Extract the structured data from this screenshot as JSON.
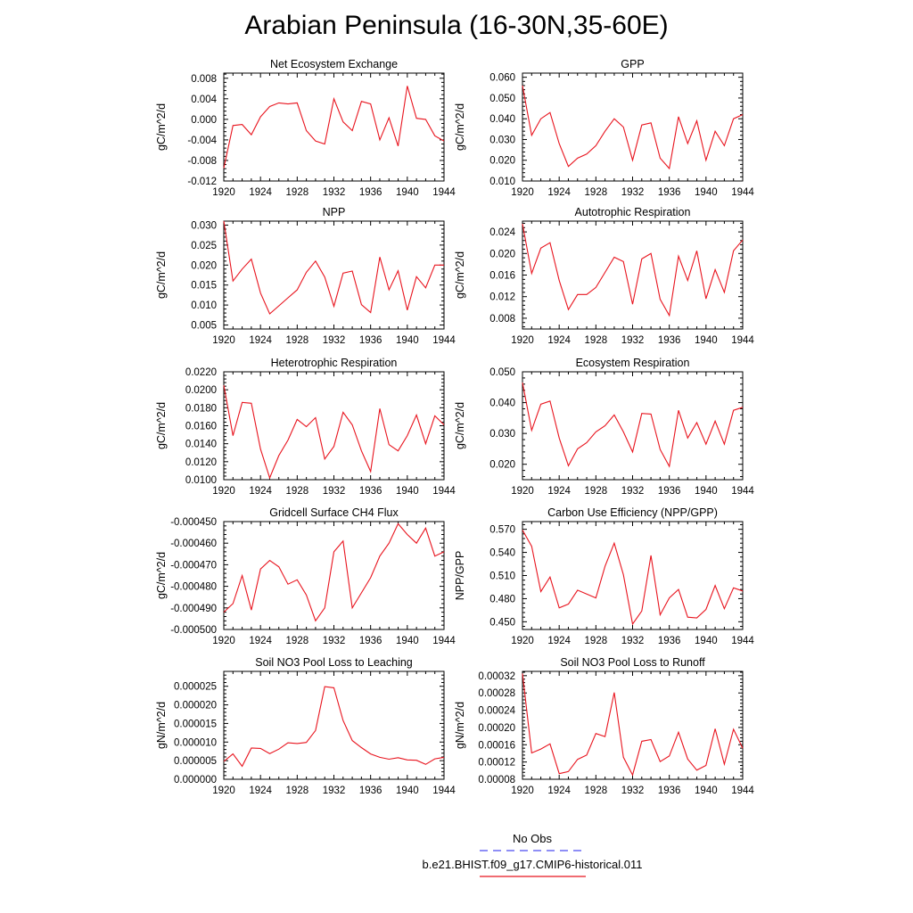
{
  "title": "Arabian Peninsula (16-30N,35-60E)",
  "legend": {
    "items": [
      {
        "label": "No Obs",
        "color": "#4a4af0",
        "dash": true
      },
      {
        "label": "b.e21.BHIST.f09_g17.CMIP6-historical.011",
        "color": "#e8141e",
        "dash": false
      }
    ]
  },
  "colors": {
    "series": "#e8141e"
  },
  "chart_data": [
    {
      "type": "line",
      "title": "Net Ecosystem Exchange",
      "ylabel": "gC/m^2/d",
      "xlim": [
        1920,
        1944
      ],
      "xticks": [
        "1920",
        "1924",
        "1928",
        "1932",
        "1936",
        "1940",
        "1944"
      ],
      "ylim": [
        -0.012,
        0.009
      ],
      "yticks": [
        "-0.012",
        "-0.008",
        "-0.004",
        "0.000",
        "0.004",
        "0.008"
      ],
      "x": [
        1920,
        1921,
        1922,
        1923,
        1924,
        1925,
        1926,
        1927,
        1928,
        1929,
        1930,
        1931,
        1932,
        1933,
        1934,
        1935,
        1936,
        1937,
        1938,
        1939,
        1940,
        1941,
        1942,
        1943,
        1944
      ],
      "y": [
        -0.0095,
        -0.0012,
        -0.001,
        -0.003,
        0.0005,
        0.0025,
        0.0032,
        0.003,
        0.0032,
        -0.0022,
        -0.0042,
        -0.0048,
        0.004,
        -0.0005,
        -0.0022,
        0.0035,
        0.003,
        -0.004,
        0.0003,
        -0.0052,
        0.0065,
        0.0002,
        0.0,
        -0.0032,
        -0.0042
      ]
    },
    {
      "type": "line",
      "title": "GPP",
      "ylabel": "gC/m^2/d",
      "xlim": [
        1920,
        1944
      ],
      "xticks": [
        "1920",
        "1924",
        "1928",
        "1932",
        "1936",
        "1940",
        "1944"
      ],
      "ylim": [
        0.01,
        0.062
      ],
      "yticks": [
        "0.010",
        "0.020",
        "0.030",
        "0.040",
        "0.050",
        "0.060"
      ],
      "x": [
        1920,
        1921,
        1922,
        1923,
        1924,
        1925,
        1926,
        1927,
        1928,
        1929,
        1930,
        1931,
        1932,
        1933,
        1934,
        1935,
        1936,
        1937,
        1938,
        1939,
        1940,
        1941,
        1942,
        1943,
        1944
      ],
      "y": [
        0.056,
        0.032,
        0.04,
        0.043,
        0.028,
        0.017,
        0.021,
        0.023,
        0.027,
        0.034,
        0.04,
        0.036,
        0.02,
        0.037,
        0.038,
        0.021,
        0.016,
        0.041,
        0.028,
        0.039,
        0.02,
        0.034,
        0.027,
        0.04,
        0.042
      ]
    },
    {
      "type": "line",
      "title": "NPP",
      "ylabel": "gC/m^2/d",
      "xlim": [
        1920,
        1944
      ],
      "xticks": [
        "1920",
        "1924",
        "1928",
        "1932",
        "1936",
        "1940",
        "1944"
      ],
      "ylim": [
        0.004,
        0.031
      ],
      "yticks": [
        "0.005",
        "0.010",
        "0.015",
        "0.020",
        "0.025",
        "0.030"
      ],
      "x": [
        1920,
        1921,
        1922,
        1923,
        1924,
        1925,
        1926,
        1927,
        1928,
        1929,
        1930,
        1931,
        1932,
        1933,
        1934,
        1935,
        1936,
        1937,
        1938,
        1939,
        1940,
        1941,
        1942,
        1943,
        1944
      ],
      "y": [
        0.031,
        0.016,
        0.019,
        0.0215,
        0.013,
        0.0078,
        0.0098,
        0.0118,
        0.0138,
        0.0182,
        0.021,
        0.017,
        0.0097,
        0.018,
        0.0185,
        0.0101,
        0.0081,
        0.022,
        0.0138,
        0.0186,
        0.0087,
        0.0171,
        0.0143,
        0.02,
        0.02
      ]
    },
    {
      "type": "line",
      "title": "Autotrophic Respiration",
      "ylabel": "gC/m^2/d",
      "xlim": [
        1920,
        1944
      ],
      "xticks": [
        "1920",
        "1924",
        "1928",
        "1932",
        "1936",
        "1940",
        "1944"
      ],
      "ylim": [
        0.006,
        0.026
      ],
      "yticks": [
        "0.008",
        "0.012",
        "0.016",
        "0.020",
        "0.024"
      ],
      "x": [
        1920,
        1921,
        1922,
        1923,
        1924,
        1925,
        1926,
        1927,
        1928,
        1929,
        1930,
        1931,
        1932,
        1933,
        1934,
        1935,
        1936,
        1937,
        1938,
        1939,
        1940,
        1941,
        1942,
        1943,
        1944
      ],
      "y": [
        0.0255,
        0.0163,
        0.021,
        0.022,
        0.015,
        0.0096,
        0.0124,
        0.0124,
        0.0137,
        0.0165,
        0.0193,
        0.0185,
        0.0106,
        0.019,
        0.02,
        0.0115,
        0.0085,
        0.0195,
        0.015,
        0.0205,
        0.0116,
        0.017,
        0.0128,
        0.0205,
        0.0225
      ]
    },
    {
      "type": "line",
      "title": "Heterotrophic Respiration",
      "ylabel": "gC/m^2/d",
      "xlim": [
        1920,
        1944
      ],
      "xticks": [
        "1920",
        "1924",
        "1928",
        "1932",
        "1936",
        "1940",
        "1944"
      ],
      "ylim": [
        0.01,
        0.022
      ],
      "yticks": [
        "0.0100",
        "0.0120",
        "0.0140",
        "0.0160",
        "0.0180",
        "0.0200",
        "0.0220"
      ],
      "x": [
        1920,
        1921,
        1922,
        1923,
        1924,
        1925,
        1926,
        1927,
        1928,
        1929,
        1930,
        1931,
        1932,
        1933,
        1934,
        1935,
        1936,
        1937,
        1938,
        1939,
        1940,
        1941,
        1942,
        1943,
        1944
      ],
      "y": [
        0.0205,
        0.0149,
        0.0186,
        0.0185,
        0.0134,
        0.0102,
        0.0127,
        0.0144,
        0.0167,
        0.0159,
        0.0169,
        0.0123,
        0.0137,
        0.0175,
        0.0161,
        0.0132,
        0.0109,
        0.0179,
        0.0139,
        0.0132,
        0.0149,
        0.0172,
        0.014,
        0.0171,
        0.0161
      ]
    },
    {
      "type": "line",
      "title": "Ecosystem Respiration",
      "ylabel": "gC/m^2/d",
      "xlim": [
        1920,
        1944
      ],
      "xticks": [
        "1920",
        "1924",
        "1928",
        "1932",
        "1936",
        "1940",
        "1944"
      ],
      "ylim": [
        0.015,
        0.05
      ],
      "yticks": [
        "0.020",
        "0.030",
        "0.040",
        "0.050"
      ],
      "x": [
        1920,
        1921,
        1922,
        1923,
        1924,
        1925,
        1926,
        1927,
        1928,
        1929,
        1930,
        1931,
        1932,
        1933,
        1934,
        1935,
        1936,
        1937,
        1938,
        1939,
        1940,
        1941,
        1942,
        1943,
        1944
      ],
      "y": [
        0.0465,
        0.031,
        0.0395,
        0.0405,
        0.0285,
        0.0195,
        0.025,
        0.027,
        0.0305,
        0.0325,
        0.036,
        0.0305,
        0.024,
        0.0365,
        0.0363,
        0.0248,
        0.0193,
        0.0375,
        0.0285,
        0.0335,
        0.0265,
        0.034,
        0.0265,
        0.0375,
        0.0385
      ]
    },
    {
      "type": "line",
      "title": "Gridcell Surface CH4 Flux",
      "ylabel": "gC/m^2/d",
      "xlim": [
        1920,
        1944
      ],
      "xticks": [
        "1920",
        "1924",
        "1928",
        "1932",
        "1936",
        "1940",
        "1944"
      ],
      "ylim": [
        -0.0005,
        -0.00045
      ],
      "yticks": [
        "-0.000500",
        "-0.000490",
        "-0.000480",
        "-0.000470",
        "-0.000460",
        "-0.000450"
      ],
      "x": [
        1920,
        1921,
        1922,
        1923,
        1924,
        1925,
        1926,
        1927,
        1928,
        1929,
        1930,
        1931,
        1932,
        1933,
        1934,
        1935,
        1936,
        1937,
        1938,
        1939,
        1940,
        1941,
        1942,
        1943,
        1944
      ],
      "y": [
        -0.000492,
        -0.000488,
        -0.000475,
        -0.000491,
        -0.000472,
        -0.000468,
        -0.000471,
        -0.000479,
        -0.000477,
        -0.000484,
        -0.000496,
        -0.00049,
        -0.000464,
        -0.000459,
        -0.00049,
        -0.000483,
        -0.000476,
        -0.000466,
        -0.00046,
        -0.000451,
        -0.000456,
        -0.00046,
        -0.000453,
        -0.000466,
        -0.000464
      ]
    },
    {
      "type": "line",
      "title": "Carbon Use Efficiency (NPP/GPP)",
      "ylabel": "NPP/GPP",
      "xlim": [
        1920,
        1944
      ],
      "xticks": [
        "1920",
        "1924",
        "1928",
        "1932",
        "1936",
        "1940",
        "1944"
      ],
      "ylim": [
        0.44,
        0.58
      ],
      "yticks": [
        "0.450",
        "0.480",
        "0.510",
        "0.540",
        "0.570"
      ],
      "x": [
        1920,
        1921,
        1922,
        1923,
        1924,
        1925,
        1926,
        1927,
        1928,
        1929,
        1930,
        1931,
        1932,
        1933,
        1934,
        1935,
        1936,
        1937,
        1938,
        1939,
        1940,
        1941,
        1942,
        1943,
        1944
      ],
      "y": [
        0.569,
        0.548,
        0.489,
        0.508,
        0.468,
        0.473,
        0.491,
        0.486,
        0.481,
        0.522,
        0.552,
        0.511,
        0.447,
        0.464,
        0.536,
        0.459,
        0.481,
        0.492,
        0.456,
        0.455,
        0.466,
        0.497,
        0.467,
        0.494,
        0.49
      ]
    },
    {
      "type": "line",
      "title": "Soil NO3 Pool Loss to Leaching",
      "ylabel": "gN/m^2/d",
      "xlim": [
        1920,
        1944
      ],
      "xticks": [
        "1920",
        "1924",
        "1928",
        "1932",
        "1936",
        "1940",
        "1944"
      ],
      "ylim": [
        0.0,
        2.9e-05
      ],
      "yticks": [
        "0.000000",
        "0.000005",
        "0.000010",
        "0.000015",
        "0.000020",
        "0.000025"
      ],
      "x": [
        1920,
        1921,
        1922,
        1923,
        1924,
        1925,
        1926,
        1927,
        1928,
        1929,
        1930,
        1931,
        1932,
        1933,
        1934,
        1935,
        1936,
        1937,
        1938,
        1939,
        1940,
        1941,
        1942,
        1943,
        1944
      ],
      "y": [
        4.8e-06,
        6.8e-06,
        3.5e-06,
        8.4e-06,
        8.3e-06,
        6.9e-06,
        8.1e-06,
        9.8e-06,
        9.6e-06,
        9.9e-06,
        1.31e-05,
        2.49e-05,
        2.46e-05,
        1.58e-05,
        1.04e-05,
        8.5e-06,
        6.8e-06,
        5.9e-06,
        5.4e-06,
        5.8e-06,
        5.2e-06,
        5.1e-06,
        4e-06,
        5.5e-06,
        5.9e-06
      ]
    },
    {
      "type": "line",
      "title": "Soil NO3 Pool Loss to Runoff",
      "ylabel": "gN/m^2/d",
      "xlim": [
        1920,
        1944
      ],
      "xticks": [
        "1920",
        "1924",
        "1928",
        "1932",
        "1936",
        "1940",
        "1944"
      ],
      "ylim": [
        8e-05,
        0.00033
      ],
      "yticks": [
        "0.00008",
        "0.00012",
        "0.00016",
        "0.00020",
        "0.00024",
        "0.00028",
        "0.00032"
      ],
      "x": [
        1920,
        1921,
        1922,
        1923,
        1924,
        1925,
        1926,
        1927,
        1928,
        1929,
        1930,
        1931,
        1932,
        1933,
        1934,
        1935,
        1936,
        1937,
        1938,
        1939,
        1940,
        1941,
        1942,
        1943,
        1944
      ],
      "y": [
        0.000325,
        0.000141,
        0.00015,
        0.000162,
        9.3e-05,
        9.8e-05,
        0.000126,
        0.000136,
        0.000186,
        0.000179,
        0.000281,
        0.000131,
        9e-05,
        0.000168,
        0.000172,
        0.000121,
        0.000134,
        0.000189,
        0.000127,
        0.000101,
        0.000112,
        0.000197,
        0.000115,
        0.000196,
        0.000152
      ]
    }
  ]
}
